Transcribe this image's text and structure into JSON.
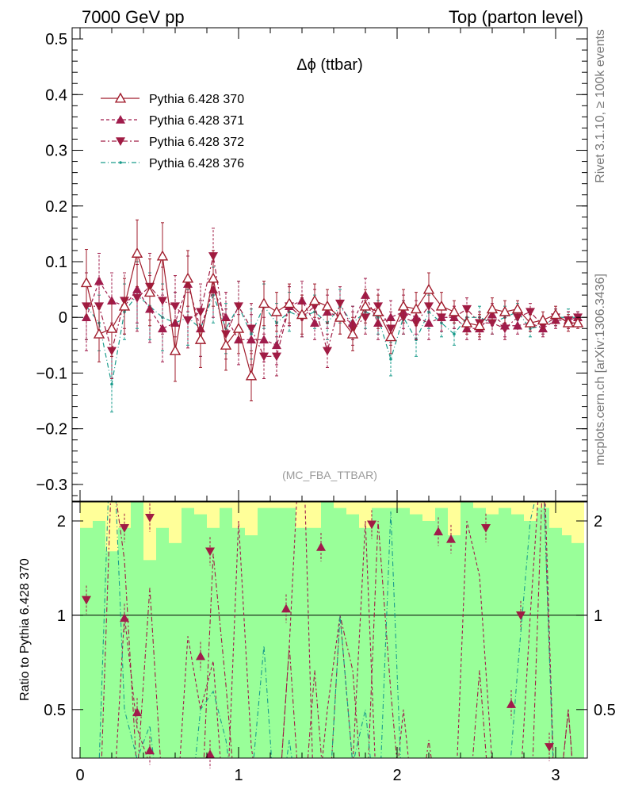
{
  "header": {
    "left": "7000 GeV pp",
    "right": "Top (parton level)"
  },
  "side_labels": {
    "rivet": "Rivet 3.1.10, ≥ 100k events",
    "mcplots": "mcplots.cern.ch [arXiv:1306.3436]"
  },
  "chart_data": {
    "type": "line",
    "title": "Δϕ (ttbar)",
    "watermark": "(MC_FBA_TTBAR)",
    "xlabel": "",
    "ylabel": "",
    "ratio_ylabel": "Ratio to Pythia 6.428 370",
    "xlim": [
      -0.05,
      3.2
    ],
    "ylim": [
      -0.33,
      0.52
    ],
    "ratio_ylim": [
      0.35,
      2.3
    ],
    "x_ticks": [
      "0",
      "1",
      "2",
      "3"
    ],
    "y_ticks": [
      "−0.3",
      "−0.2",
      "−0.1",
      "0",
      "0.1",
      "0.2",
      "0.3",
      "0.4",
      "0.5"
    ],
    "ratio_ticks": [
      "0.5",
      "1",
      "2"
    ],
    "legend_position": "top-left",
    "series_styles": [
      {
        "color": "#a01c2c",
        "marker": "triangle-up-open",
        "dash": ""
      },
      {
        "color": "#a01c4c",
        "marker": "triangle-up",
        "dash": "4,3"
      },
      {
        "color": "#a01c44",
        "marker": "triangle-down",
        "dash": "6,3,2,3"
      },
      {
        "color": "#1a9c8c",
        "marker": "dot",
        "dash": "6,3,1,3"
      }
    ],
    "x": [
      0.04,
      0.12,
      0.2,
      0.28,
      0.36,
      0.44,
      0.52,
      0.6,
      0.68,
      0.76,
      0.84,
      0.92,
      1.0,
      1.08,
      1.16,
      1.24,
      1.32,
      1.4,
      1.48,
      1.56,
      1.64,
      1.72,
      1.8,
      1.88,
      1.96,
      2.04,
      2.12,
      2.2,
      2.28,
      2.36,
      2.44,
      2.52,
      2.6,
      2.68,
      2.76,
      2.84,
      2.92,
      3.0,
      3.08,
      3.14
    ],
    "series": [
      {
        "name": "Pythia 6.428 370",
        "values": [
          0.062,
          -0.03,
          -0.02,
          0.02,
          0.115,
          0.045,
          0.11,
          -0.06,
          0.07,
          -0.04,
          0.07,
          -0.05,
          -0.02,
          -0.105,
          0.025,
          0.01,
          0.025,
          0.005,
          0.03,
          0.02,
          0.0,
          -0.03,
          0.02,
          0.01,
          -0.035,
          0.02,
          0.015,
          0.05,
          0.02,
          0.01,
          -0.01,
          -0.015,
          0.015,
          0.01,
          0.015,
          -0.01,
          -0.005,
          0.005,
          -0.01,
          -0.01
        ],
        "errors": [
          0.06,
          0.05,
          0.05,
          0.05,
          0.06,
          0.06,
          0.06,
          0.055,
          0.05,
          0.05,
          0.05,
          0.045,
          0.045,
          0.045,
          0.04,
          0.035,
          0.035,
          0.035,
          0.03,
          0.03,
          0.03,
          0.03,
          0.03,
          0.03,
          0.03,
          0.03,
          0.03,
          0.03,
          0.025,
          0.02,
          0.02,
          0.02,
          0.02,
          0.02,
          0.015,
          0.015,
          0.015,
          0.015,
          0.015,
          0.01
        ]
      },
      {
        "name": "Pythia 6.428 371",
        "values": [
          0.0,
          0.065,
          0.03,
          0.02,
          0.05,
          0.015,
          -0.02,
          -0.01,
          0.06,
          -0.02,
          0.05,
          0.0,
          -0.04,
          -0.04,
          -0.04,
          -0.05,
          0.02,
          0.03,
          -0.01,
          0.01,
          0.0,
          -0.01,
          0.04,
          -0.01,
          0.0,
          0.01,
          0.0,
          -0.01,
          0.0,
          0.0,
          -0.02,
          -0.02,
          0.005,
          -0.015,
          -0.015,
          -0.01,
          -0.02,
          -0.005,
          -0.005,
          0.0
        ],
        "errors": [
          0.06,
          0.05,
          0.05,
          0.05,
          0.06,
          0.06,
          0.06,
          0.055,
          0.05,
          0.05,
          0.05,
          0.045,
          0.045,
          0.045,
          0.04,
          0.035,
          0.035,
          0.035,
          0.03,
          0.03,
          0.03,
          0.03,
          0.03,
          0.03,
          0.03,
          0.03,
          0.03,
          0.03,
          0.025,
          0.02,
          0.02,
          0.02,
          0.02,
          0.02,
          0.015,
          0.015,
          0.015,
          0.015,
          0.015,
          0.01
        ]
      },
      {
        "name": "Pythia 6.428 372",
        "values": [
          0.02,
          0.02,
          -0.06,
          0.03,
          0.035,
          0.055,
          0.03,
          0.02,
          -0.005,
          0.01,
          0.11,
          -0.03,
          0.02,
          -0.02,
          -0.07,
          -0.07,
          0.02,
          0.0,
          0.02,
          -0.06,
          0.025,
          -0.02,
          0.0,
          0.02,
          -0.02,
          0.0,
          -0.01,
          0.02,
          0.0,
          0.0,
          0.015,
          -0.01,
          -0.01,
          -0.02,
          0.0,
          0.01,
          -0.015,
          0.0,
          -0.005,
          0.0
        ],
        "errors": [
          0.06,
          0.05,
          0.05,
          0.05,
          0.06,
          0.06,
          0.06,
          0.055,
          0.05,
          0.05,
          0.05,
          0.045,
          0.045,
          0.045,
          0.04,
          0.035,
          0.035,
          0.035,
          0.03,
          0.03,
          0.03,
          0.03,
          0.03,
          0.03,
          0.03,
          0.03,
          0.03,
          0.03,
          0.025,
          0.02,
          0.02,
          0.02,
          0.02,
          0.02,
          0.015,
          0.015,
          0.015,
          0.015,
          0.015,
          0.01
        ]
      },
      {
        "name": "Pythia 6.428 376",
        "values": [
          0.02,
          -0.01,
          -0.12,
          0.01,
          0.04,
          0.02,
          0.0,
          -0.01,
          0.0,
          -0.02,
          0.04,
          -0.02,
          0.02,
          -0.03,
          0.02,
          -0.01,
          0.01,
          0.0,
          0.01,
          -0.01,
          0.02,
          -0.01,
          0.01,
          0.0,
          -0.075,
          0.0,
          -0.04,
          0.01,
          -0.01,
          -0.03,
          0.0,
          0.0,
          -0.01,
          0.0,
          0.01,
          -0.02,
          -0.015,
          0.0,
          0.0,
          0.0
        ],
        "errors": [
          0.06,
          0.05,
          0.05,
          0.05,
          0.06,
          0.06,
          0.06,
          0.055,
          0.05,
          0.05,
          0.05,
          0.045,
          0.045,
          0.045,
          0.04,
          0.035,
          0.035,
          0.035,
          0.03,
          0.03,
          0.03,
          0.03,
          0.03,
          0.03,
          0.03,
          0.03,
          0.03,
          0.03,
          0.025,
          0.02,
          0.02,
          0.02,
          0.02,
          0.02,
          0.015,
          0.015,
          0.015,
          0.015,
          0.015,
          0.01
        ]
      }
    ],
    "ratio_band_inner": [
      1.9,
      2.0,
      1.6,
      1.9,
      2.3,
      1.5,
      1.9,
      1.7,
      2.2,
      2.1,
      1.9,
      2.2,
      1.9,
      1.8,
      2.2,
      2.2,
      2.2,
      1.9,
      1.9,
      2.3,
      2.2,
      2.1,
      1.9,
      2.2,
      2.2,
      2.2,
      2.1,
      2.0,
      2.2,
      1.8,
      2.3,
      2.2,
      2.1,
      2.2,
      2.1,
      2.0,
      2.2,
      1.9,
      1.8,
      1.7
    ],
    "ratio_band_outer": [
      2.3,
      2.3,
      2.3,
      2.3,
      2.3,
      2.3,
      2.3,
      2.3,
      2.3,
      2.3,
      2.3,
      2.3,
      2.3,
      2.3,
      2.3,
      2.3,
      2.3,
      2.3,
      2.3,
      2.3,
      2.3,
      2.3,
      2.3,
      2.3,
      2.3,
      2.3,
      2.3,
      2.3,
      2.3,
      2.3,
      2.3,
      2.3,
      2.3,
      2.3,
      2.3,
      2.3,
      2.3,
      2.3,
      2.3,
      2.3
    ],
    "ratio_points": [
      {
        "series": "Pythia 6.428 372",
        "x": 0.04,
        "y": 1.12
      },
      {
        "series": "Pythia 6.428 372",
        "x": 0.28,
        "y": 1.9
      },
      {
        "series": "Pythia 6.428 371",
        "x": 0.28,
        "y": 0.98
      },
      {
        "series": "Pythia 6.428 371",
        "x": 0.36,
        "y": 0.49
      },
      {
        "series": "Pythia 6.428 371",
        "x": 0.44,
        "y": 0.37
      },
      {
        "series": "Pythia 6.428 372",
        "x": 0.44,
        "y": 2.05
      },
      {
        "series": "Pythia 6.428 371",
        "x": 0.76,
        "y": 0.74
      },
      {
        "series": "Pythia 6.428 372",
        "x": 0.82,
        "y": 1.6
      },
      {
        "series": "Pythia 6.428 371",
        "x": 0.82,
        "y": 0.36
      },
      {
        "series": "Pythia 6.428 371",
        "x": 1.3,
        "y": 1.05
      },
      {
        "series": "Pythia 6.428 371",
        "x": 1.52,
        "y": 1.65
      },
      {
        "series": "Pythia 6.428 372",
        "x": 1.84,
        "y": 1.95
      },
      {
        "series": "Pythia 6.428 371",
        "x": 2.26,
        "y": 1.85
      },
      {
        "series": "Pythia 6.428 371",
        "x": 2.34,
        "y": 1.75
      },
      {
        "series": "Pythia 6.428 372",
        "x": 2.56,
        "y": 1.9
      },
      {
        "series": "Pythia 6.428 371",
        "x": 2.72,
        "y": 0.52
      },
      {
        "series": "Pythia 6.428 372",
        "x": 2.78,
        "y": 1.0
      },
      {
        "series": "Pythia 6.428 372",
        "x": 2.96,
        "y": 0.38
      }
    ]
  }
}
